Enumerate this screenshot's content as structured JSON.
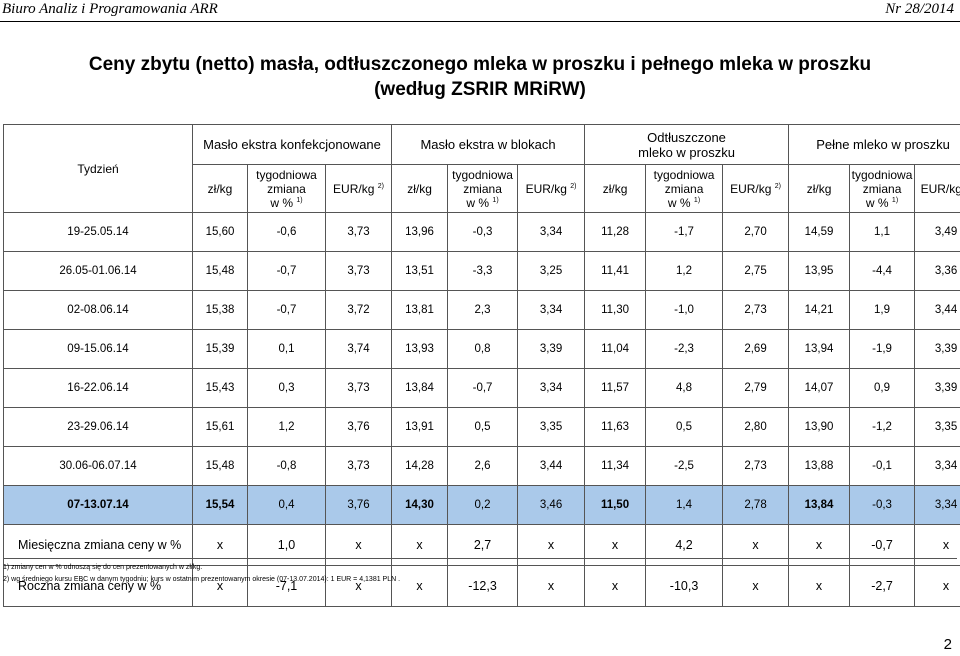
{
  "running_head": {
    "left": "Biuro Analiz i Programowania ARR",
    "right": "Nr 28/2014"
  },
  "title_line1": "Ceny zbytu (netto) masła, odtłuszczonego mleka w proszku i pełnego mleka w proszku",
  "title_line2": "(według ZSRIR MRiRW)",
  "header": {
    "week": "Tydzień",
    "groups": [
      "Masło ekstra konfekcjonowane",
      "Masło ekstra w blokach",
      "Odtłuszczone mleko w proszku",
      "Pełne mleko w proszku"
    ],
    "pln": "zł/kg",
    "change_a": "tygodniowa",
    "change_b": "zmiana",
    "change_c": "w %",
    "change_sup": "1)",
    "eur": "EUR/kg",
    "eur_sup": "2)"
  },
  "rows": [
    {
      "week": "19-25.05.14",
      "v": [
        "15,60",
        "-0,6",
        "3,73",
        "13,96",
        "-0,3",
        "3,34",
        "11,28",
        "-1,7",
        "2,70",
        "14,59",
        "1,1",
        "3,49"
      ]
    },
    {
      "week": "26.05-01.06.14",
      "v": [
        "15,48",
        "-0,7",
        "3,73",
        "13,51",
        "-3,3",
        "3,25",
        "11,41",
        "1,2",
        "2,75",
        "13,95",
        "-4,4",
        "3,36"
      ]
    },
    {
      "week": "02-08.06.14",
      "v": [
        "15,38",
        "-0,7",
        "3,72",
        "13,81",
        "2,3",
        "3,34",
        "11,30",
        "-1,0",
        "2,73",
        "14,21",
        "1,9",
        "3,44"
      ]
    },
    {
      "week": "09-15.06.14",
      "v": [
        "15,39",
        "0,1",
        "3,74",
        "13,93",
        "0,8",
        "3,39",
        "11,04",
        "-2,3",
        "2,69",
        "13,94",
        "-1,9",
        "3,39"
      ]
    },
    {
      "week": "16-22.06.14",
      "v": [
        "15,43",
        "0,3",
        "3,73",
        "13,84",
        "-0,7",
        "3,34",
        "11,57",
        "4,8",
        "2,79",
        "14,07",
        "0,9",
        "3,39"
      ]
    },
    {
      "week": "23-29.06.14",
      "v": [
        "15,61",
        "1,2",
        "3,76",
        "13,91",
        "0,5",
        "3,35",
        "11,63",
        "0,5",
        "2,80",
        "13,90",
        "-1,2",
        "3,35"
      ]
    },
    {
      "week": "30.06-06.07.14",
      "v": [
        "15,48",
        "-0,8",
        "3,73",
        "14,28",
        "2,6",
        "3,44",
        "11,34",
        "-2,5",
        "2,73",
        "13,88",
        "-0,1",
        "3,34"
      ]
    },
    {
      "week": "07-13.07.14",
      "v": [
        "15,54",
        "0,4",
        "3,76",
        "14,30",
        "0,2",
        "3,46",
        "11,50",
        "1,4",
        "2,78",
        "13,84",
        "-0,3",
        "3,34"
      ]
    }
  ],
  "monthly": {
    "label": "Miesięczna zmiana ceny w %",
    "v": [
      "x",
      "1,0",
      "x",
      "x",
      "2,7",
      "x",
      "x",
      "4,2",
      "x",
      "x",
      "-0,7",
      "x"
    ]
  },
  "yearly": {
    "label": "Roczna zmiana ceny w %",
    "v": [
      "x",
      "-7,1",
      "x",
      "x",
      "-12,3",
      "x",
      "x",
      "-10,3",
      "x",
      "x",
      "-2,7",
      "x"
    ]
  },
  "footnotes": [
    "1) zmiany cen w % odnoszą się do cen prezentowanych w zł/kg.",
    "2) wg średniego kursu EBC w danym tygodniu; kurs w ostatnim prezentowanym okresie (07-13.07.2014): 1 EUR =  4,1381  PLN ."
  ],
  "page_number": "2"
}
